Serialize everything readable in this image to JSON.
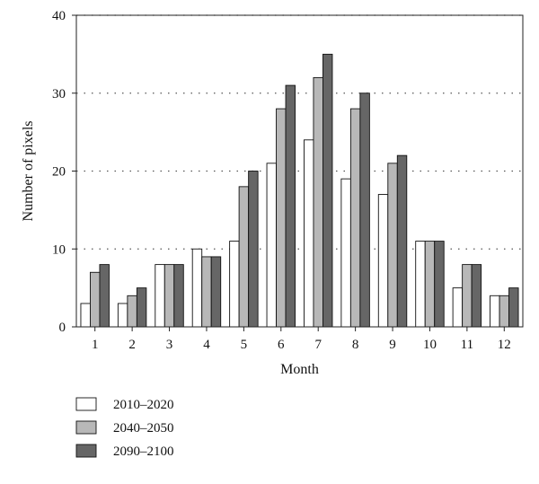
{
  "chart_data": {
    "type": "bar",
    "xlabel": "Month",
    "ylabel": "Number of pixels",
    "categories": [
      "1",
      "2",
      "3",
      "4",
      "5",
      "6",
      "7",
      "8",
      "9",
      "10",
      "11",
      "12"
    ],
    "series": [
      {
        "name": "2010–2020",
        "color": "#ffffff",
        "values": [
          3,
          3,
          8,
          10,
          11,
          21,
          24,
          19,
          17,
          11,
          5,
          4
        ]
      },
      {
        "name": "2040–2050",
        "color": "#b8b8b8",
        "values": [
          7,
          4,
          8,
          9,
          18,
          28,
          32,
          28,
          21,
          11,
          8,
          4
        ]
      },
      {
        "name": "2090–2100",
        "color": "#666666",
        "values": [
          8,
          5,
          8,
          9,
          20,
          31,
          35,
          30,
          22,
          11,
          8,
          5
        ]
      }
    ],
    "ylim": [
      0,
      40
    ],
    "yticks": [
      0,
      10,
      20,
      30,
      40
    ],
    "grid": "horizontal dotted",
    "legend_position": "bottom-left"
  }
}
